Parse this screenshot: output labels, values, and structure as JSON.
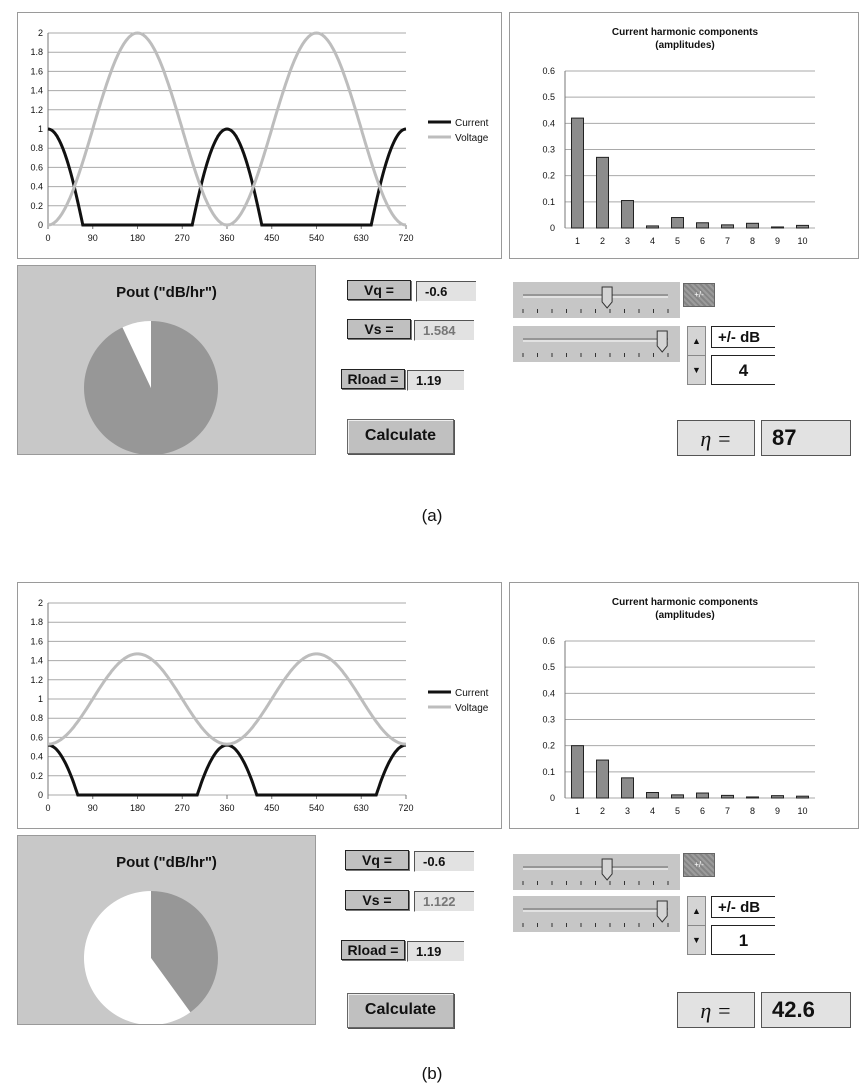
{
  "panels": [
    {
      "id": "a",
      "caption": "(a)",
      "chart_data": [
        {
          "type": "line",
          "xlim": [
            0,
            720
          ],
          "ylim": [
            0,
            2
          ],
          "x_ticks": [
            "0",
            "90",
            "180",
            "270",
            "360",
            "450",
            "540",
            "630",
            "720"
          ],
          "y_ticks": [
            "0",
            "0.2",
            "0.4",
            "0.6",
            "0.8",
            "1",
            "1.2",
            "1.4",
            "1.6",
            "1.8",
            "2"
          ],
          "grid": true,
          "legend_position": "right",
          "series": [
            {
              "name": "Current",
              "color": "#111111",
              "shape": "current",
              "amp": 1.0,
              "cond_angle": 70
            },
            {
              "name": "Voltage",
              "color": "#bdbdbd",
              "shape": "voltage",
              "offset": 1.0,
              "amp": 1.0
            }
          ]
        },
        {
          "type": "bar",
          "title_line1": "Current harmonic components",
          "title_line2": "(amplitudes)",
          "categories": [
            "1",
            "2",
            "3",
            "4",
            "5",
            "6",
            "7",
            "8",
            "9",
            "10"
          ],
          "values": [
            0.42,
            0.27,
            0.105,
            0.008,
            0.04,
            0.02,
            0.012,
            0.018,
            0.004,
            0.01
          ],
          "ylim": [
            0,
            0.6
          ],
          "y_ticks": [
            "0",
            "0.1",
            "0.2",
            "0.3",
            "0.4",
            "0.5",
            "0.6"
          ],
          "color": "#8c8c8c"
        },
        {
          "type": "pie",
          "title": "Pout (\"dB/hr\")",
          "slices": [
            {
              "value": 93,
              "color": "#979797"
            },
            {
              "value": 7,
              "color": "#ffffff"
            }
          ]
        }
      ],
      "controls": {
        "vq_label": "Vq =",
        "vq_value": "-0.6",
        "vs_label": "Vs =",
        "vs_value": "1.584",
        "rload_label": "Rload =",
        "rload_value": "1.19",
        "calculate_label": "Calculate",
        "slider1_value": 0.58,
        "slider2_value": 0.96,
        "pm_button_label": "+/-",
        "db_label": "+/- dB",
        "db_value": "4",
        "eta_label": "η =",
        "eta_value": "87"
      }
    },
    {
      "id": "b",
      "caption": "(b)",
      "chart_data": [
        {
          "type": "line",
          "xlim": [
            0,
            720
          ],
          "ylim": [
            0,
            2
          ],
          "x_ticks": [
            "0",
            "90",
            "180",
            "270",
            "360",
            "450",
            "540",
            "630",
            "720"
          ],
          "y_ticks": [
            "0",
            "0.2",
            "0.4",
            "0.6",
            "0.8",
            "1",
            "1.2",
            "1.4",
            "1.6",
            "1.8",
            "2"
          ],
          "grid": true,
          "legend_position": "right",
          "series": [
            {
              "name": "Current",
              "color": "#111111",
              "shape": "current",
              "amp": 0.52,
              "cond_angle": 60
            },
            {
              "name": "Voltage",
              "color": "#bdbdbd",
              "shape": "voltage",
              "offset": 1.0,
              "amp": 0.47
            }
          ]
        },
        {
          "type": "bar",
          "title_line1": "Current harmonic components",
          "title_line2": "(amplitudes)",
          "categories": [
            "1",
            "2",
            "3",
            "4",
            "5",
            "6",
            "7",
            "8",
            "9",
            "10"
          ],
          "values": [
            0.2,
            0.145,
            0.077,
            0.021,
            0.012,
            0.019,
            0.01,
            0.004,
            0.009,
            0.007
          ],
          "ylim": [
            0,
            0.6
          ],
          "y_ticks": [
            "0",
            "0.1",
            "0.2",
            "0.3",
            "0.4",
            "0.5",
            "0.6"
          ],
          "color": "#8c8c8c"
        },
        {
          "type": "pie",
          "title": "Pout (\"dB/hr\")",
          "slices": [
            {
              "value": 40,
              "color": "#979797"
            },
            {
              "value": 60,
              "color": "#ffffff"
            }
          ]
        }
      ],
      "controls": {
        "vq_label": "Vq =",
        "vq_value": "-0.6",
        "vs_label": "Vs =",
        "vs_value": "1.122",
        "rload_label": "Rload =",
        "rload_value": "1.19",
        "calculate_label": "Calculate",
        "slider1_value": 0.58,
        "slider2_value": 0.96,
        "pm_button_label": "+/-",
        "db_label": "+/- dB",
        "db_value": "1",
        "eta_label": "η =",
        "eta_value": "42.6"
      }
    }
  ]
}
